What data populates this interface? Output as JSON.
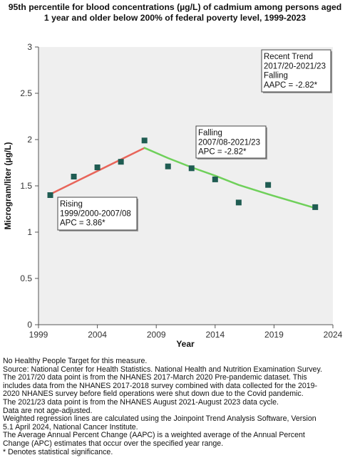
{
  "chart_data": {
    "type": "scatter",
    "title": "95th percentile for blood concentrations (µg/L) of cadmium among persons aged 1 year and older below 200% of federal poverty level, 1999-2023",
    "xlabel": "Year",
    "ylabel": "Microgram/liter (µg/L)",
    "xlim": [
      1999,
      2024
    ],
    "ylim": [
      0,
      3
    ],
    "x_ticks": [
      "1999",
      "2004",
      "2009",
      "2014",
      "2019",
      "2024"
    ],
    "y_ticks": [
      "0",
      "0.5",
      "1",
      "1.5",
      "2",
      "2.5",
      "3"
    ],
    "grid": false,
    "series": [
      {
        "type": "points",
        "color": "#1f5c52",
        "x": [
          2000,
          2002,
          2004,
          2006,
          2008,
          2010,
          2012,
          2014,
          2016,
          2018.5,
          2022.5
        ],
        "y": [
          1.4,
          1.6,
          1.7,
          1.76,
          1.99,
          1.71,
          1.69,
          1.57,
          1.32,
          1.51,
          1.27
        ]
      },
      {
        "type": "trend",
        "color": "#e8655a",
        "x": [
          2000,
          2008
        ],
        "y": [
          1.41,
          1.91
        ]
      },
      {
        "type": "trend",
        "color": "#6fd05a",
        "x": [
          2008,
          2010,
          2012,
          2014,
          2016,
          2018.5,
          2022.5
        ],
        "y": [
          1.91,
          1.8,
          1.7,
          1.61,
          1.51,
          1.41,
          1.26
        ]
      }
    ],
    "annotations": [
      {
        "lines": [
          "Rising",
          "1999/2000-2007/08",
          "APC =  3.86*"
        ]
      },
      {
        "lines": [
          "Falling",
          "2007/08-2021/23",
          "APC = -2.82*"
        ]
      },
      {
        "lines": [
          "Recent Trend",
          "2017/20-2021/23",
          "Falling",
          "AAPC = -2.82*"
        ]
      }
    ]
  },
  "footnotes": [
    "No Healthy People Target for this measure.",
    "Source: National Center for Health Statistics. National Health and Nutrition Examination Survey.",
    "The 2017/20 data point is from the NHANES 2017-March 2020 Pre-pandemic dataset. This",
    "includes data from the NHANES 2017-2018 survey combined with data collected for the 2019-",
    "2020 NHANES survey before field operations were shut down due to the Covid pandemic.",
    "The 2021/23 data point is from the NHANES August 2021-August 2023 data cycle.",
    "Data are not age-adjusted.",
    "Weighted regression lines are calculated using the Joinpoint Trend Analysis Software, Version",
    "5.1 April 2024, National Cancer Institute.",
    "The Average Annual Percent Change (AAPC) is a weighted average of the Annual Percent",
    "Change (APC) estimates that occur over the specified year range.",
    "* Denotes statistical significance."
  ]
}
